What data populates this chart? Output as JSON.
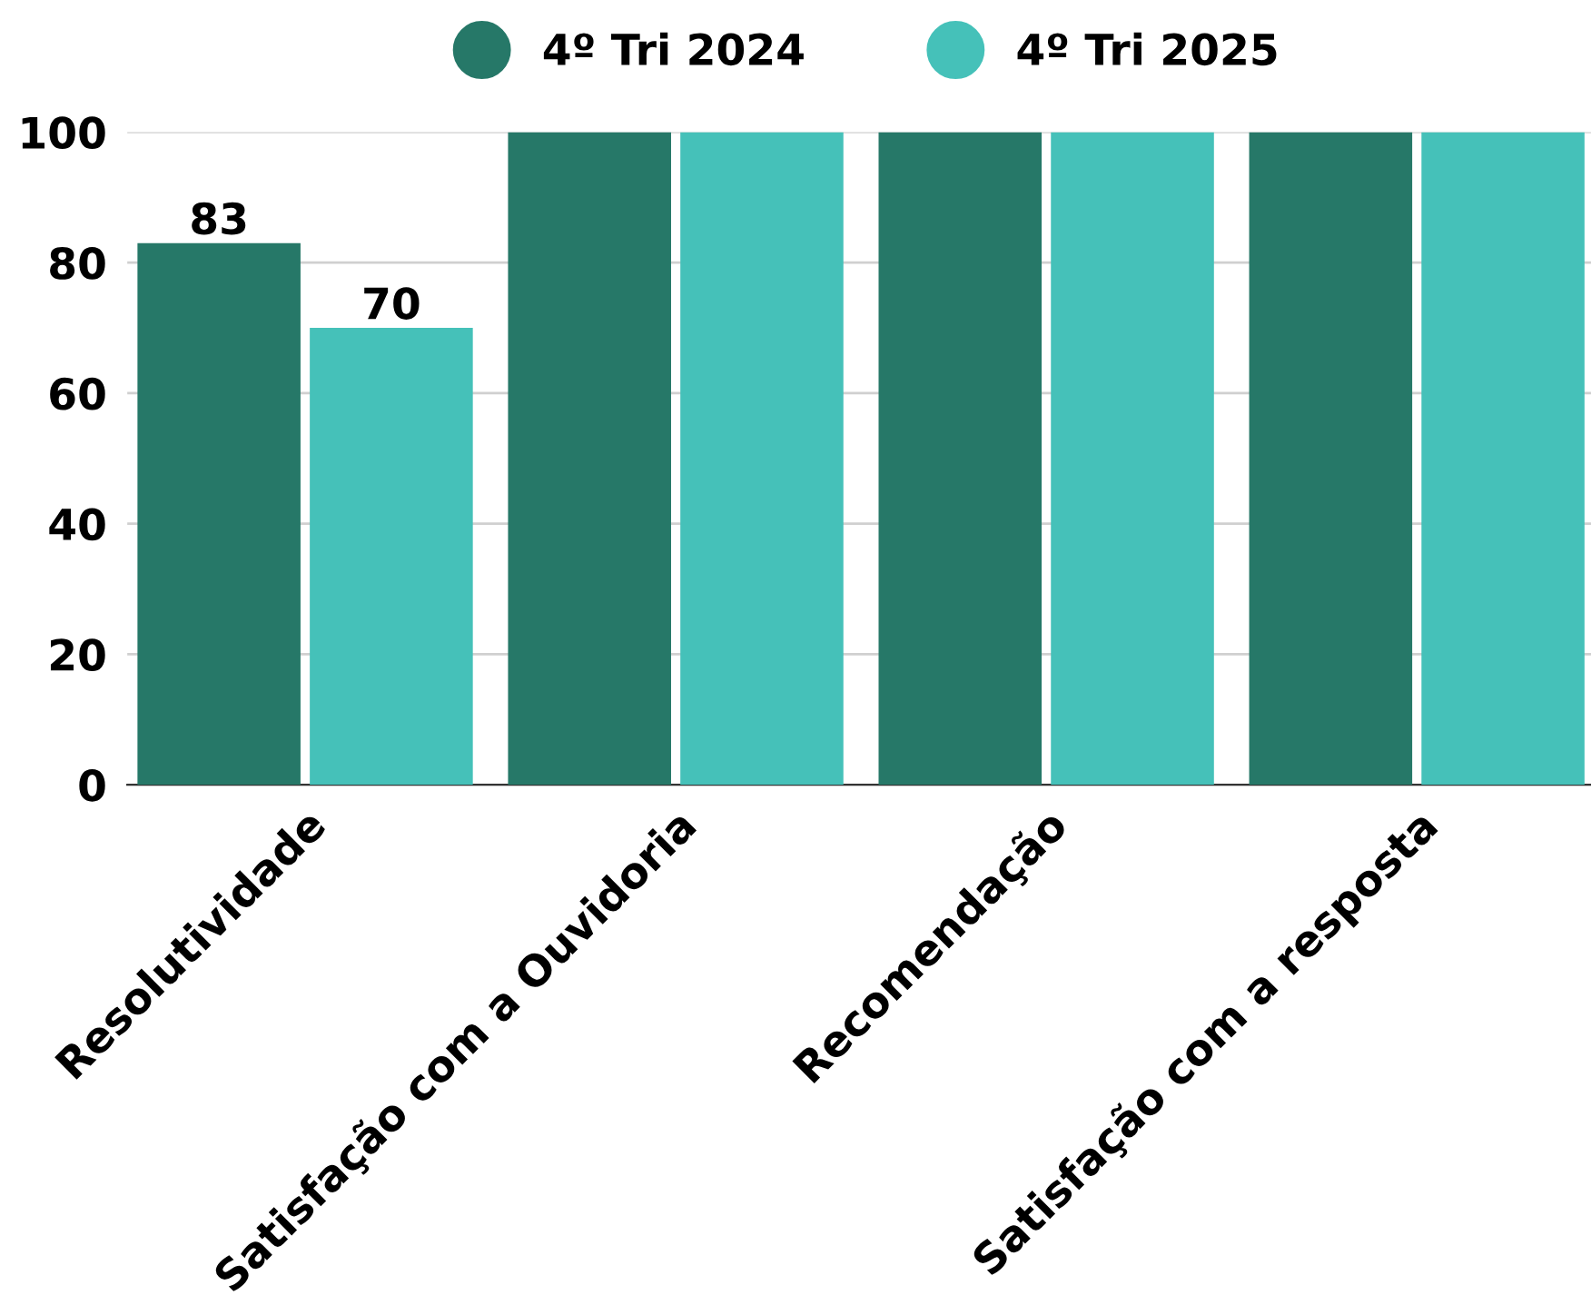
{
  "chart_data": {
    "type": "bar",
    "categories": [
      "Resolutividade",
      "Satisfação com a Ouvidoria",
      "Recomendação",
      "Satisfação com a resposta"
    ],
    "series": [
      {
        "name": "4º Tri 2024",
        "color": "#267868",
        "values": [
          83,
          100,
          100,
          100
        ],
        "value_labels": [
          "83",
          null,
          null,
          null
        ]
      },
      {
        "name": "4º Tri 2025",
        "color": "#45c1b9",
        "values": [
          70,
          100,
          100,
          100
        ],
        "value_labels": [
          "70",
          null,
          null,
          null
        ]
      }
    ],
    "ylim": [
      0,
      100
    ],
    "yticks": [
      0,
      20,
      40,
      60,
      80,
      100
    ],
    "grid": "y",
    "legend": "top"
  }
}
